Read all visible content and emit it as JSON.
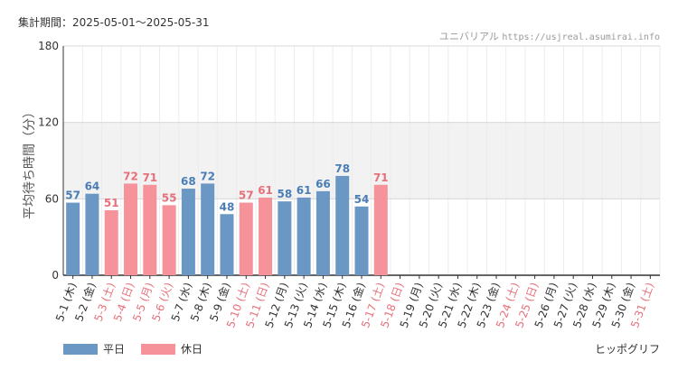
{
  "header": {
    "period_label": "集計期間：2025-05-01〜2025-05-31",
    "park_name": "ユニバリアル",
    "site_url": "https://usjreal.asumirai.info"
  },
  "footer": {
    "attraction_name": "ヒッポグリフ"
  },
  "colors": {
    "weekday": "#6b97c4",
    "holiday": "#f5929a",
    "weekday_text": "#4a7db5",
    "holiday_text": "#e8707a",
    "band": "#f2f2f2"
  },
  "chart_data": {
    "type": "bar",
    "ylabel": "平均待ち時間（分）",
    "xlabel": "",
    "ylim": [
      0,
      180
    ],
    "yticks": [
      0,
      60,
      120,
      180
    ],
    "grid": true,
    "legend_position": "bottom-left",
    "categories": [
      "5-1 (木)",
      "5-2 (金)",
      "5-3 (土)",
      "5-4 (日)",
      "5-5 (月)",
      "5-6 (火)",
      "5-7 (水)",
      "5-8 (木)",
      "5-9 (金)",
      "5-10 (土)",
      "5-11 (日)",
      "5-12 (月)",
      "5-13 (火)",
      "5-14 (水)",
      "5-15 (木)",
      "5-16 (金)",
      "5-17 (土)",
      "5-18 (日)",
      "5-19 (月)",
      "5-20 (火)",
      "5-21 (水)",
      "5-22 (木)",
      "5-23 (金)",
      "5-24 (土)",
      "5-25 (日)",
      "5-26 (月)",
      "5-27 (火)",
      "5-28 (水)",
      "5-29 (木)",
      "5-30 (金)",
      "5-31 (土)"
    ],
    "day_type": [
      "weekday",
      "weekday",
      "holiday",
      "holiday",
      "holiday",
      "holiday",
      "weekday",
      "weekday",
      "weekday",
      "holiday",
      "holiday",
      "weekday",
      "weekday",
      "weekday",
      "weekday",
      "weekday",
      "holiday",
      "holiday",
      "weekday",
      "weekday",
      "weekday",
      "weekday",
      "weekday",
      "holiday",
      "holiday",
      "weekday",
      "weekday",
      "weekday",
      "weekday",
      "weekday",
      "holiday"
    ],
    "values": [
      57,
      64,
      51,
      72,
      71,
      55,
      68,
      72,
      48,
      57,
      61,
      58,
      61,
      66,
      78,
      54,
      71,
      null,
      null,
      null,
      null,
      null,
      null,
      null,
      null,
      null,
      null,
      null,
      null,
      null,
      null
    ],
    "series": [
      {
        "name": "平日",
        "key": "weekday"
      },
      {
        "name": "休日",
        "key": "holiday"
      }
    ],
    "shaded_band": [
      60,
      120
    ]
  }
}
